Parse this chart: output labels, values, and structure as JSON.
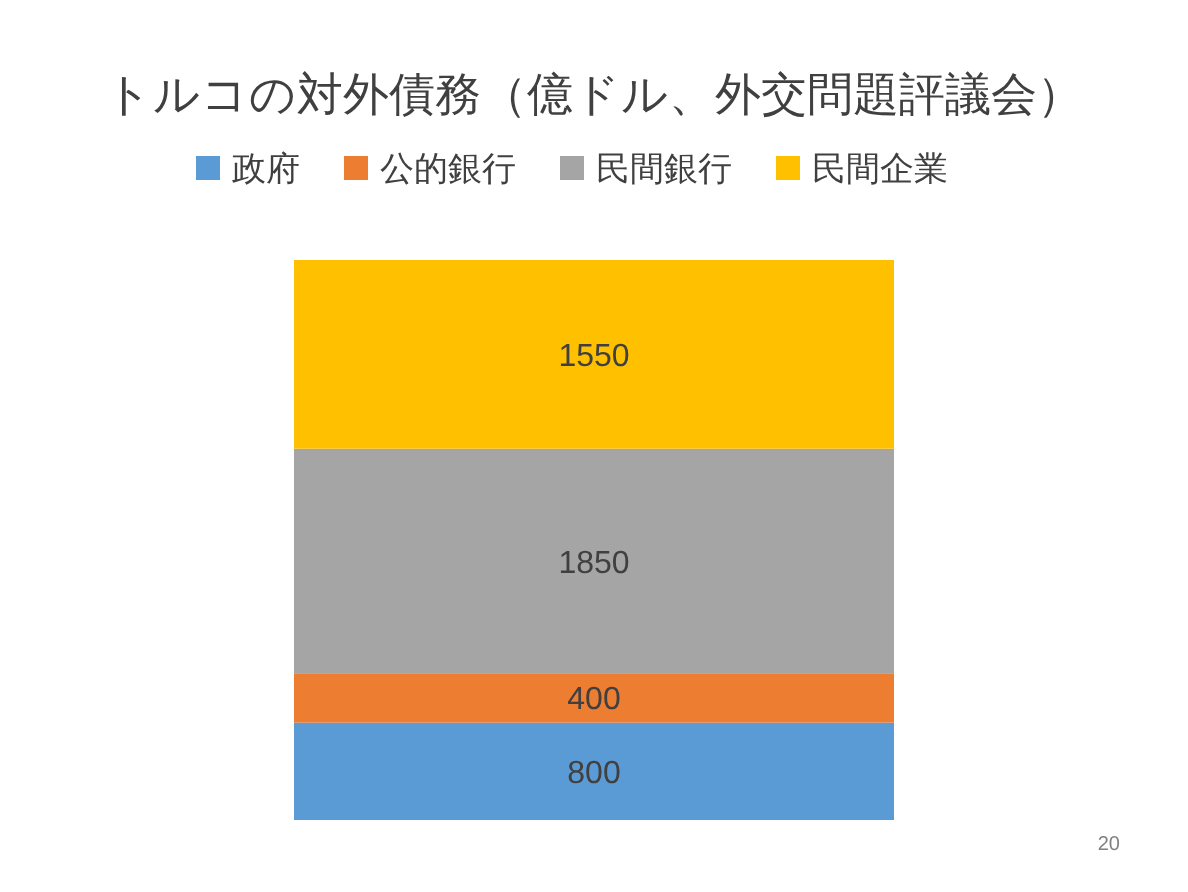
{
  "chart_data": {
    "type": "bar",
    "title": "トルコの対外債務（億ドル、外交問題評議会）",
    "categories": [
      null
    ],
    "stacked": true,
    "data_labels": true,
    "legend": "top",
    "series": [
      {
        "name": "政府",
        "color": "#5b9bd5",
        "values": [
          800
        ]
      },
      {
        "name": "公的銀行",
        "color": "#ed7d31",
        "values": [
          400
        ]
      },
      {
        "name": "民間銀行",
        "color": "#a5a5a5",
        "values": [
          1850
        ]
      },
      {
        "name": "民間企業",
        "color": "#ffc000",
        "values": [
          1550
        ]
      }
    ],
    "annotations": [
      "20"
    ]
  }
}
